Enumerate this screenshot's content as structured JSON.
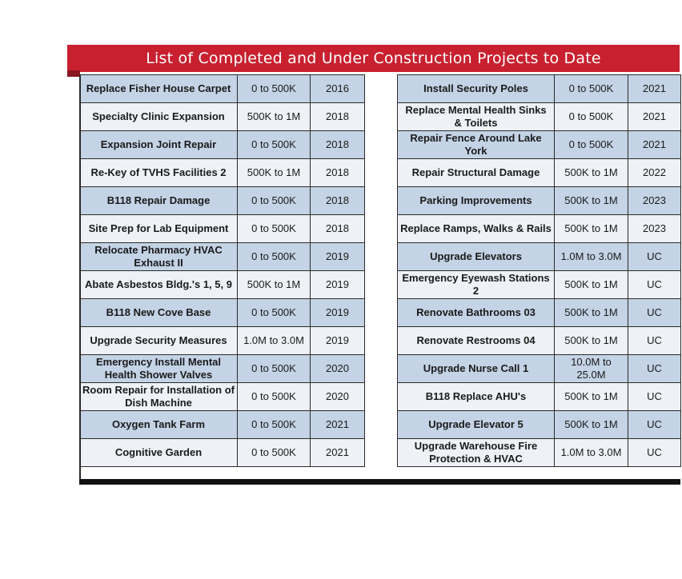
{
  "title": "List of Completed and Under Construction Projects to Date",
  "colors": {
    "banner": "#c8202f",
    "row_blue": "#c4d3e5",
    "row_white": "#eef1f5"
  },
  "left_rows": [
    {
      "project": "Replace Fisher House Carpet",
      "cost": "0 to 500K",
      "year": "2016",
      "shade": "blue"
    },
    {
      "project": "Specialty Clinic Expansion",
      "cost": "500K to 1M",
      "year": "2018",
      "shade": "white"
    },
    {
      "project": "Expansion Joint Repair",
      "cost": "0 to 500K",
      "year": "2018",
      "shade": "blue"
    },
    {
      "project": "Re-Key of TVHS Facilities 2",
      "cost": "500K to 1M",
      "year": "2018",
      "shade": "white"
    },
    {
      "project": "B118 Repair Damage",
      "cost": "0 to 500K",
      "year": "2018",
      "shade": "blue"
    },
    {
      "project": "Site Prep for Lab Equipment",
      "cost": "0 to 500K",
      "year": "2018",
      "shade": "white"
    },
    {
      "project": "Relocate Pharmacy HVAC Exhaust II",
      "cost": "0 to 500K",
      "year": "2019",
      "shade": "blue"
    },
    {
      "project": "Abate Asbestos Bldg.'s 1, 5, 9",
      "cost": "500K to 1M",
      "year": "2019",
      "shade": "white"
    },
    {
      "project": "B118 New Cove Base",
      "cost": "0 to 500K",
      "year": "2019",
      "shade": "blue"
    },
    {
      "project": "Upgrade Security Measures",
      "cost": "1.0M to 3.0M",
      "year": "2019",
      "shade": "white"
    },
    {
      "project": "Emergency Install Mental Health Shower Valves",
      "cost": "0 to 500K",
      "year": "2020",
      "shade": "blue"
    },
    {
      "project": "Room Repair for Installation of Dish Machine",
      "cost": "0 to 500K",
      "year": "2020",
      "shade": "white"
    },
    {
      "project": "Oxygen Tank Farm",
      "cost": "0 to 500K",
      "year": "2021",
      "shade": "blue"
    },
    {
      "project": "Cognitive Garden",
      "cost": "0 to 500K",
      "year": "2021",
      "shade": "white"
    }
  ],
  "right_rows": [
    {
      "project": "Install Security Poles",
      "cost": "0 to 500K",
      "year": "2021",
      "shade": "blue"
    },
    {
      "project": "Replace Mental Health Sinks & Toilets",
      "cost": "0 to 500K",
      "year": "2021",
      "shade": "white"
    },
    {
      "project": "Repair Fence Around Lake York",
      "cost": "0 to 500K",
      "year": "2021",
      "shade": "blue"
    },
    {
      "project": "Repair Structural Damage",
      "cost": "500K to 1M",
      "year": "2022",
      "shade": "white"
    },
    {
      "project": "Parking Improvements",
      "cost": "500K to 1M",
      "year": "2023",
      "shade": "blue"
    },
    {
      "project": "Replace Ramps, Walks & Rails",
      "cost": "500K to 1M",
      "year": "2023",
      "shade": "white"
    },
    {
      "project": "Upgrade Elevators",
      "cost": "1.0M to 3.0M",
      "year": "UC",
      "shade": "blue"
    },
    {
      "project": "Emergency Eyewash Stations 2",
      "cost": "500K to 1M",
      "year": "UC",
      "shade": "white"
    },
    {
      "project": "Renovate Bathrooms 03",
      "cost": "500K to 1M",
      "year": "UC",
      "shade": "blue"
    },
    {
      "project": "Renovate Restrooms 04",
      "cost": "500K to 1M",
      "year": "UC",
      "shade": "white"
    },
    {
      "project": "Upgrade Nurse Call 1",
      "cost": "10.0M to 25.0M",
      "year": "UC",
      "shade": "blue"
    },
    {
      "project": "B118 Replace AHU's",
      "cost": "500K to 1M",
      "year": "UC",
      "shade": "white"
    },
    {
      "project": "Upgrade Elevator 5",
      "cost": "500K to 1M",
      "year": "UC",
      "shade": "blue"
    },
    {
      "project": "Upgrade Warehouse Fire Protection & HVAC",
      "cost": "1.0M to 3.0M",
      "year": "UC",
      "shade": "white"
    }
  ]
}
